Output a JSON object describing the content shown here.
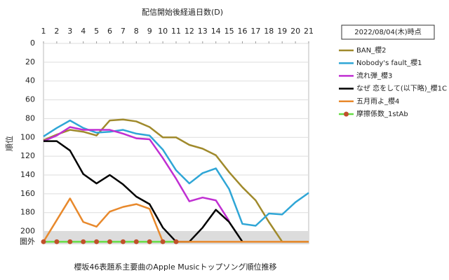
{
  "chart_data": {
    "type": "line",
    "title": "配信開始後経過日数(D)",
    "caption": "櫻坂46表題系主要曲のApple Musicトップソング順位推移",
    "y_label": "順位",
    "annotation": "2022/08/04(木)時点",
    "y_inverted": true,
    "grid": true,
    "legend": "right",
    "x": [
      1,
      2,
      3,
      4,
      5,
      6,
      7,
      8,
      9,
      10,
      11,
      12,
      13,
      14,
      15,
      16,
      17,
      18,
      19,
      20,
      21
    ],
    "xlim": [
      1,
      21
    ],
    "xticks": [
      1,
      2,
      3,
      4,
      5,
      6,
      7,
      8,
      9,
      10,
      11,
      12,
      13,
      14,
      15,
      16,
      17,
      18,
      19,
      20,
      21
    ],
    "ylim": [
      0,
      213
    ],
    "yticks": [
      0,
      20,
      40,
      60,
      80,
      100,
      120,
      140,
      160,
      180,
      200,
      {
        "value": 211,
        "label": "圏外"
      }
    ],
    "series": [
      {
        "name": "BAN_櫻2",
        "color": "#a08a2c",
        "values": [
          103,
          97,
          92,
          94,
          98,
          82,
          81,
          83,
          89,
          100,
          100,
          108,
          112,
          119,
          137,
          153,
          167,
          190,
          211,
          211,
          211
        ]
      },
      {
        "name": "Nobody's fault_櫻1",
        "color": "#2fa6d6",
        "values": [
          99,
          90,
          82,
          90,
          95,
          94,
          92,
          96,
          98,
          113,
          135,
          149,
          138,
          133,
          155,
          192,
          194,
          181,
          182,
          169,
          159
        ]
      },
      {
        "name": "流れ弾_櫻3",
        "color": "#c02fd2",
        "values": [
          104,
          98,
          89,
          92,
          92,
          92,
          96,
          101,
          102,
          122,
          144,
          168,
          164,
          167,
          189,
          null,
          null,
          null,
          null,
          null,
          null
        ]
      },
      {
        "name": "なぜ 恋をして(以下略)_櫻1C",
        "color": "#000000",
        "values": [
          104,
          104,
          114,
          139,
          149,
          140,
          150,
          163,
          171,
          196,
          211,
          211,
          196,
          177,
          190,
          211,
          null,
          null,
          null,
          null,
          null
        ]
      },
      {
        "name": "五月雨よ_櫻4",
        "color": "#e8892c",
        "values": [
          211,
          188,
          165,
          190,
          195,
          179,
          174,
          171,
          176,
          211,
          211,
          211,
          211,
          211,
          211,
          211,
          211,
          211,
          211,
          211,
          211
        ]
      },
      {
        "name": "摩擦係数_1stAb",
        "color": "#66dd44",
        "marker_color": "#c0502a",
        "markers": true,
        "values": [
          211,
          211,
          211,
          211,
          211,
          211,
          211,
          211,
          211,
          211,
          211,
          null,
          null,
          null,
          null,
          null,
          null,
          null,
          null,
          null,
          null
        ]
      }
    ]
  }
}
